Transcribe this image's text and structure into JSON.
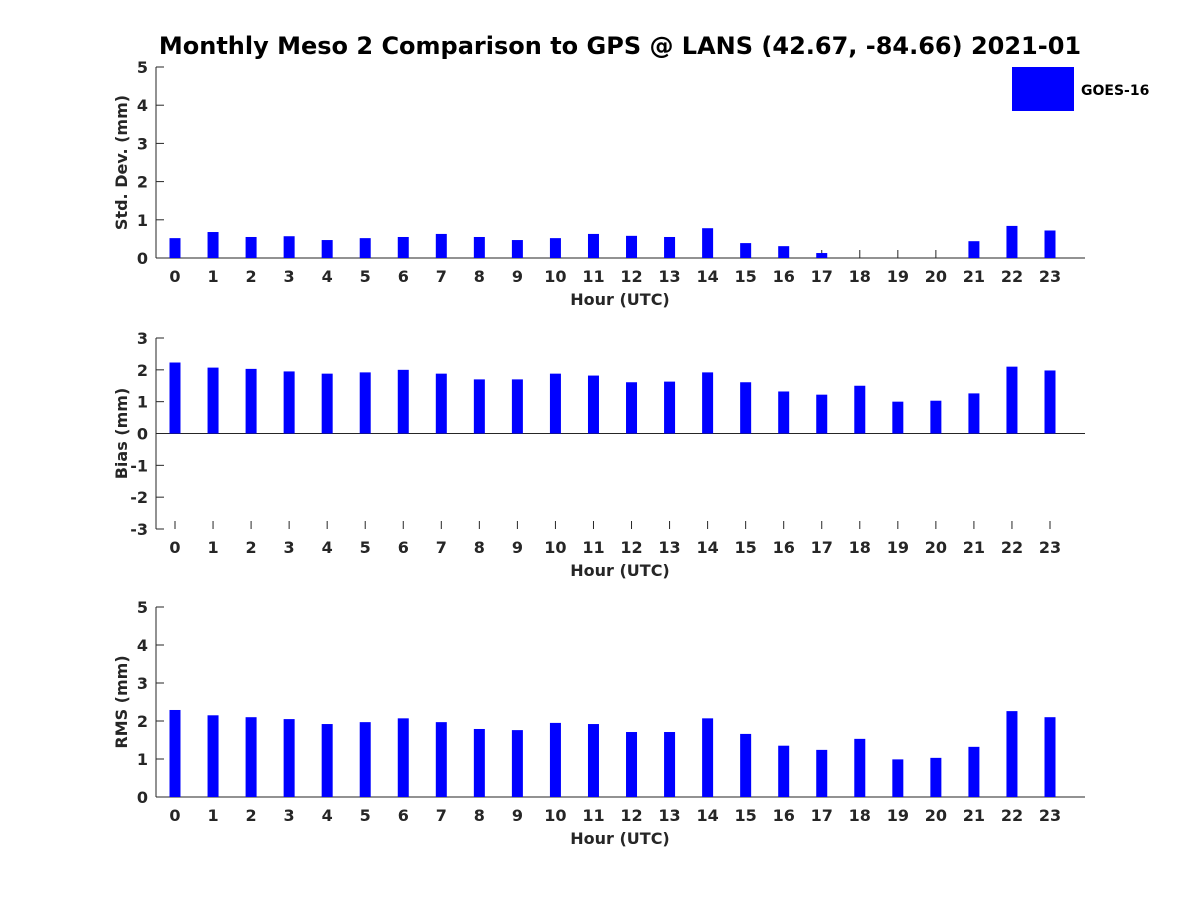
{
  "title": "Monthly Meso 2 Comparison to GPS @ LANS (42.67, -84.66) 2021-01",
  "legend": {
    "label": "GOES-16",
    "color": "#0000FF",
    "placement": "top-right"
  },
  "chart_data": [
    {
      "type": "bar",
      "xlabel": "Hour (UTC)",
      "ylabel": "Std. Dev. (mm)",
      "ylim": [
        0,
        5
      ],
      "yticks": [
        0,
        1,
        2,
        3,
        4,
        5
      ],
      "categories": [
        "0",
        "1",
        "2",
        "3",
        "4",
        "5",
        "6",
        "7",
        "8",
        "9",
        "10",
        "11",
        "12",
        "13",
        "14",
        "15",
        "16",
        "17",
        "18",
        "19",
        "20",
        "21",
        "22",
        "23"
      ],
      "series": [
        {
          "name": "GOES-16",
          "color": "#0000FF",
          "values": [
            0.52,
            0.68,
            0.55,
            0.57,
            0.47,
            0.52,
            0.55,
            0.63,
            0.55,
            0.47,
            0.52,
            0.63,
            0.58,
            0.55,
            0.78,
            0.39,
            0.31,
            0.13,
            0,
            0,
            0,
            0.44,
            0.84,
            0.72
          ]
        }
      ]
    },
    {
      "type": "bar",
      "xlabel": "Hour (UTC)",
      "ylabel": "Bias (mm)",
      "ylim": [
        -3,
        3
      ],
      "yticks": [
        -3,
        -2,
        -1,
        0,
        1,
        2,
        3
      ],
      "categories": [
        "0",
        "1",
        "2",
        "3",
        "4",
        "5",
        "6",
        "7",
        "8",
        "9",
        "10",
        "11",
        "12",
        "13",
        "14",
        "15",
        "16",
        "17",
        "18",
        "19",
        "20",
        "21",
        "22",
        "23"
      ],
      "series": [
        {
          "name": "GOES-16",
          "color": "#0000FF",
          "values": [
            2.23,
            2.07,
            2.03,
            1.95,
            1.88,
            1.92,
            2.0,
            1.88,
            1.7,
            1.7,
            1.88,
            1.82,
            1.61,
            1.63,
            1.92,
            1.61,
            1.32,
            1.22,
            1.5,
            1.0,
            1.03,
            1.26,
            2.1,
            1.98
          ]
        }
      ]
    },
    {
      "type": "bar",
      "xlabel": "Hour (UTC)",
      "ylabel": "RMS (mm)",
      "ylim": [
        0,
        5
      ],
      "yticks": [
        0,
        1,
        2,
        3,
        4,
        5
      ],
      "categories": [
        "0",
        "1",
        "2",
        "3",
        "4",
        "5",
        "6",
        "7",
        "8",
        "9",
        "10",
        "11",
        "12",
        "13",
        "14",
        "15",
        "16",
        "17",
        "18",
        "19",
        "20",
        "21",
        "22",
        "23"
      ],
      "series": [
        {
          "name": "GOES-16",
          "color": "#0000FF",
          "values": [
            2.29,
            2.15,
            2.1,
            2.05,
            1.92,
            1.97,
            2.07,
            1.97,
            1.79,
            1.76,
            1.95,
            1.92,
            1.71,
            1.71,
            2.07,
            1.66,
            1.35,
            1.24,
            1.53,
            0.99,
            1.03,
            1.32,
            2.26,
            2.1
          ]
        }
      ]
    }
  ]
}
